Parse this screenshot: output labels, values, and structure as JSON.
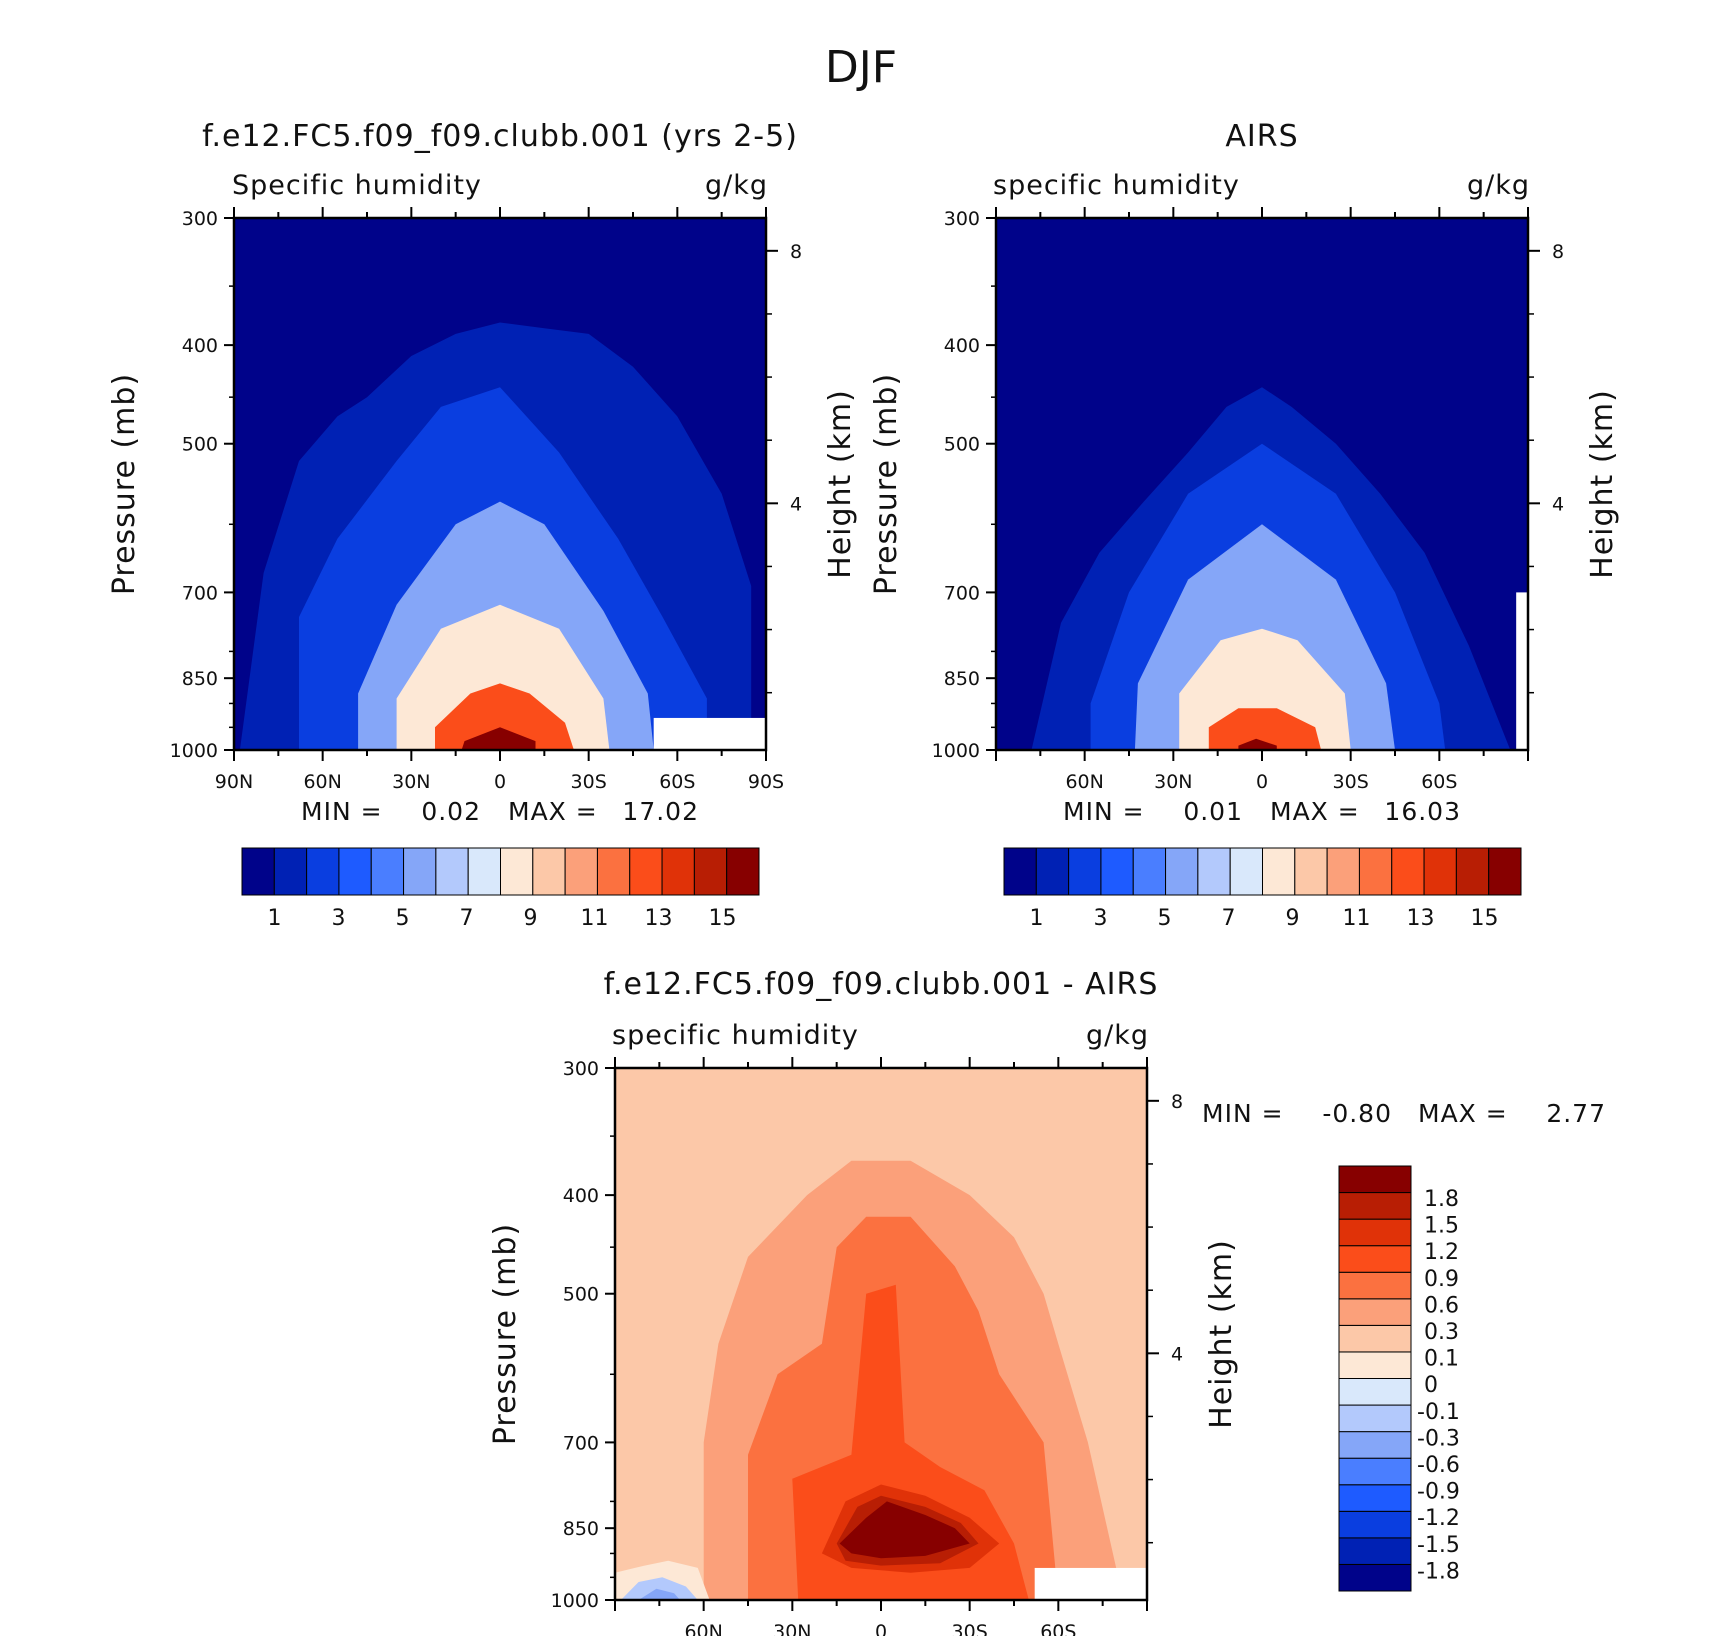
{
  "figure": {
    "title": "DJF"
  },
  "common": {
    "y_ticks": [
      "300",
      "400",
      "500",
      "700",
      "850",
      "1000"
    ],
    "height_ticks": [
      "8",
      "4"
    ],
    "y_label": "Pressure (mb)",
    "height_label": "Height (km)",
    "min_label": "MIN =",
    "max_label": "MAX ="
  },
  "panels": [
    {
      "id": "model",
      "title": "f.e12.FC5.f09_f09.clubb.001 (yrs 2-5)",
      "left_label": "Specific humidity",
      "right_label": "g/kg",
      "x_ticks": [
        "90N",
        "60N",
        "30N",
        "0",
        "30S",
        "60S",
        "90S"
      ],
      "min": "0.02",
      "max": "17.02",
      "colorbar_labels": [
        "1",
        "3",
        "5",
        "7",
        "9",
        "11",
        "13",
        "15"
      ]
    },
    {
      "id": "obs",
      "title": "AIRS",
      "left_label": "specific humidity",
      "right_label": "g/kg",
      "x_ticks": [
        "60N",
        "30N",
        "0",
        "30S",
        "60S"
      ],
      "min": "0.01",
      "max": "16.03",
      "colorbar_labels": [
        "1",
        "3",
        "5",
        "7",
        "9",
        "11",
        "13",
        "15"
      ]
    },
    {
      "id": "diff",
      "title": "f.e12.FC5.f09_f09.clubb.001 - AIRS",
      "left_label": "specific humidity",
      "right_label": "g/kg",
      "x_ticks": [
        "60N",
        "30N",
        "0",
        "30S",
        "60S"
      ],
      "min": "-0.80",
      "max": "2.77",
      "colorbar_labels": [
        "1.8",
        "1.5",
        "1.2",
        "0.9",
        "0.6",
        "0.3",
        "0.1",
        "0",
        "-0.1",
        "-0.3",
        "-0.6",
        "-0.9",
        "-1.2",
        "-1.5",
        "-1.8"
      ]
    }
  ],
  "chart_data": [
    {
      "type": "heatmap",
      "title": "f.e12.FC5.f09_f09.clubb.001 (yrs 2-5)",
      "variable": "Specific humidity",
      "units": "g/kg",
      "xlabel": "",
      "ylabel": "Pressure (mb)",
      "y2label": "Height (km)",
      "xlim": [
        90,
        -90
      ],
      "x_ticks": [
        90,
        60,
        30,
        0,
        -30,
        -60,
        -90
      ],
      "ylim": [
        1000,
        300
      ],
      "y_scale": "log",
      "y_ticks": [
        300,
        400,
        500,
        700,
        850,
        1000
      ],
      "y2_ticks": [
        8,
        4
      ],
      "min": 0.02,
      "max": 17.02,
      "contour_levels": [
        1,
        2,
        3,
        4,
        5,
        6,
        7,
        8,
        9,
        10,
        11,
        12,
        13,
        14,
        15
      ],
      "colors": [
        "#00038a",
        "#0021b4",
        "#0a3ee0",
        "#1e5bff",
        "#4a7eff",
        "#85a6f8",
        "#b3c9fc",
        "#d9e8fb",
        "#fde8d6",
        "#fcc8a8",
        "#fba07a",
        "#fb7140",
        "#fb4d1a",
        "#e03208",
        "#b81e04",
        "#870000"
      ],
      "peak": {
        "lat": 0,
        "p": 1000
      },
      "missing_region": {
        "lat_range": [
          -52,
          -90
        ],
        "p_range": [
          930,
          1000
        ]
      },
      "contours": [
        {
          "level": 1,
          "tops": [
            [
              -85,
              690
            ],
            [
              -75,
              560
            ],
            [
              -60,
              470
            ],
            [
              -45,
              420
            ],
            [
              -30,
              390
            ],
            [
              -15,
              385
            ],
            [
              0,
              380
            ],
            [
              15,
              390
            ],
            [
              30,
              410
            ],
            [
              45,
              450
            ],
            [
              55,
              470
            ],
            [
              68,
              520
            ],
            [
              80,
              670
            ],
            [
              88,
              1000
            ]
          ]
        },
        {
          "level": 2,
          "bottom_lat": [
            -70,
            68
          ],
          "tops": [
            [
              -70,
              890
            ],
            [
              -55,
              740
            ],
            [
              -40,
              620
            ],
            [
              -20,
              510
            ],
            [
              0,
              440
            ],
            [
              20,
              460
            ],
            [
              35,
              520
            ],
            [
              55,
              620
            ],
            [
              68,
              740
            ]
          ]
        },
        {
          "level": 5,
          "bottom_lat": [
            -52,
            48
          ],
          "tops": [
            [
              -50,
              880
            ],
            [
              -35,
              730
            ],
            [
              -15,
              600
            ],
            [
              0,
              570
            ],
            [
              15,
              600
            ],
            [
              35,
              720
            ],
            [
              48,
              880
            ]
          ]
        },
        {
          "level": 8,
          "bottom_lat": [
            -37,
            35
          ],
          "tops": [
            [
              -35,
              890
            ],
            [
              -20,
              760
            ],
            [
              0,
              720
            ],
            [
              20,
              760
            ],
            [
              35,
              890
            ]
          ]
        },
        {
          "level": 12,
          "bottom_lat": [
            -25,
            22
          ],
          "tops": [
            [
              -22,
              940
            ],
            [
              -10,
              880
            ],
            [
              0,
              860
            ],
            [
              10,
              880
            ],
            [
              22,
              950
            ]
          ]
        },
        {
          "level": 15,
          "bottom_lat": [
            -12,
            13
          ],
          "tops": [
            [
              -12,
              980
            ],
            [
              0,
              950
            ],
            [
              12,
              980
            ]
          ]
        }
      ]
    },
    {
      "type": "heatmap",
      "title": "AIRS",
      "variable": "specific humidity",
      "units": "g/kg",
      "xlabel": "",
      "ylabel": "Pressure (mb)",
      "y2label": "Height (km)",
      "xlim": [
        90,
        -90
      ],
      "x_ticks": [
        60,
        30,
        0,
        -30,
        -60
      ],
      "ylim": [
        1000,
        300
      ],
      "y_scale": "log",
      "y_ticks": [
        300,
        400,
        500,
        700,
        850,
        1000
      ],
      "y2_ticks": [
        8,
        4
      ],
      "min": 0.01,
      "max": 16.03,
      "contour_levels": [
        1,
        2,
        3,
        4,
        5,
        6,
        7,
        8,
        9,
        10,
        11,
        12,
        13,
        14,
        15
      ],
      "colors": [
        "#00038a",
        "#0021b4",
        "#0a3ee0",
        "#1e5bff",
        "#4a7eff",
        "#85a6f8",
        "#b3c9fc",
        "#d9e8fb",
        "#fde8d6",
        "#fcc8a8",
        "#fba07a",
        "#fb7140",
        "#fb4d1a",
        "#e03208",
        "#b81e04",
        "#870000"
      ],
      "peak": {
        "lat": 0,
        "p": 1000
      },
      "missing_region": {
        "lat_range": [
          -86,
          -90
        ],
        "p_range": [
          700,
          1000
        ]
      },
      "contours": [
        {
          "level": 1,
          "tops": [
            [
              -84,
              1000
            ],
            [
              -70,
              790
            ],
            [
              -55,
              640
            ],
            [
              -40,
              560
            ],
            [
              -25,
              500
            ],
            [
              -10,
              460
            ],
            [
              0,
              440
            ],
            [
              12,
              460
            ],
            [
              25,
              510
            ],
            [
              40,
              570
            ],
            [
              55,
              640
            ],
            [
              68,
              750
            ],
            [
              78,
              1000
            ]
          ]
        },
        {
          "level": 2,
          "bottom_lat": [
            -62,
            58
          ],
          "tops": [
            [
              -60,
              900
            ],
            [
              -45,
              700
            ],
            [
              -25,
              560
            ],
            [
              0,
              500
            ],
            [
              25,
              560
            ],
            [
              45,
              700
            ],
            [
              58,
              900
            ]
          ]
        },
        {
          "level": 5,
          "bottom_lat": [
            -45,
            43
          ],
          "tops": [
            [
              -42,
              860
            ],
            [
              -25,
              680
            ],
            [
              0,
              600
            ],
            [
              25,
              680
            ],
            [
              42,
              860
            ]
          ]
        },
        {
          "level": 8,
          "bottom_lat": [
            -30,
            28
          ],
          "tops": [
            [
              -28,
              880
            ],
            [
              -12,
              780
            ],
            [
              0,
              760
            ],
            [
              14,
              780
            ],
            [
              28,
              880
            ]
          ]
        },
        {
          "level": 12,
          "bottom_lat": [
            -20,
            18
          ],
          "tops": [
            [
              -18,
              950
            ],
            [
              -5,
              910
            ],
            [
              8,
              910
            ],
            [
              18,
              950
            ]
          ]
        },
        {
          "level": 15,
          "bottom_lat": [
            -5,
            8
          ],
          "tops": [
            [
              -5,
              990
            ],
            [
              2,
              975
            ],
            [
              8,
              990
            ]
          ]
        }
      ]
    },
    {
      "type": "heatmap",
      "title": "f.e12.FC5.f09_f09.clubb.001 - AIRS",
      "variable": "specific humidity",
      "units": "g/kg",
      "xlabel": "",
      "ylabel": "Pressure (mb)",
      "y2label": "Height (km)",
      "xlim": [
        90,
        -90
      ],
      "x_ticks": [
        60,
        30,
        0,
        -30,
        -60
      ],
      "ylim": [
        1000,
        300
      ],
      "y_scale": "log",
      "y_ticks": [
        300,
        400,
        500,
        700,
        850,
        1000
      ],
      "y2_ticks": [
        8,
        4
      ],
      "min": -0.8,
      "max": 2.77,
      "contour_levels": [
        -1.8,
        -1.5,
        -1.2,
        -0.9,
        -0.6,
        -0.3,
        -0.1,
        0,
        0.1,
        0.3,
        0.6,
        0.9,
        1.2,
        1.5,
        1.8
      ],
      "colors": [
        "#00038a",
        "#0021b4",
        "#0a3ee0",
        "#1e5bff",
        "#4a7eff",
        "#85a6f8",
        "#b3c9fc",
        "#d9e8fb",
        "#fde8d6",
        "#fcc8a8",
        "#fba07a",
        "#fb7140",
        "#fb4d1a",
        "#e03208",
        "#b81e04",
        "#870000"
      ],
      "background_level": 0.1,
      "peak": {
        "lat": 0,
        "p": 850
      },
      "missing_region": {
        "lat_range": [
          -52,
          -90
        ],
        "p_range": [
          930,
          1000
        ]
      },
      "regions": [
        {
          "level": 0.3,
          "polygon": [
            [
              60,
              1000
            ],
            [
              60,
              700
            ],
            [
              55,
              560
            ],
            [
              45,
              460
            ],
            [
              25,
              400
            ],
            [
              10,
              370
            ],
            [
              -10,
              370
            ],
            [
              -30,
              400
            ],
            [
              -45,
              440
            ],
            [
              -55,
              500
            ],
            [
              -60,
              560
            ],
            [
              -70,
              700
            ],
            [
              -82,
              1000
            ]
          ]
        },
        {
          "level": 0.6,
          "polygon": [
            [
              45,
              1000
            ],
            [
              45,
              720
            ],
            [
              35,
              600
            ],
            [
              20,
              560
            ],
            [
              15,
              450
            ],
            [
              5,
              420
            ],
            [
              -10,
              420
            ],
            [
              -25,
              470
            ],
            [
              -33,
              520
            ],
            [
              -40,
              600
            ],
            [
              -55,
              700
            ],
            [
              -60,
              1000
            ]
          ]
        },
        {
          "level": 0.9,
          "polygon": [
            [
              28,
              1000
            ],
            [
              30,
              760
            ],
            [
              10,
              720
            ],
            [
              5,
              500
            ],
            [
              -5,
              490
            ],
            [
              -8,
              700
            ],
            [
              -20,
              740
            ],
            [
              -35,
              780
            ],
            [
              -45,
              880
            ],
            [
              -50,
              1000
            ]
          ]
        },
        {
          "level": 1.2,
          "polygon": [
            [
              20,
              900
            ],
            [
              12,
              800
            ],
            [
              0,
              770
            ],
            [
              -15,
              790
            ],
            [
              -30,
              830
            ],
            [
              -40,
              880
            ],
            [
              -30,
              930
            ],
            [
              -10,
              940
            ],
            [
              10,
              930
            ]
          ]
        },
        {
          "level": 1.5,
          "polygon": [
            [
              15,
              880
            ],
            [
              8,
              810
            ],
            [
              0,
              790
            ],
            [
              -15,
              810
            ],
            [
              -27,
              840
            ],
            [
              -33,
              880
            ],
            [
              -20,
              920
            ],
            [
              0,
              925
            ],
            [
              12,
              915
            ]
          ]
        },
        {
          "level": 1.8,
          "polygon": [
            [
              14,
              880
            ],
            [
              5,
              830
            ],
            [
              -2,
              800
            ],
            [
              -15,
              825
            ],
            [
              -25,
              850
            ],
            [
              -30,
              880
            ],
            [
              -15,
              905
            ],
            [
              0,
              910
            ],
            [
              10,
              900
            ]
          ]
        },
        {
          "level": 0,
          "polygon": [
            [
              90,
              1000
            ],
            [
              90,
              940
            ],
            [
              80,
              925
            ],
            [
              72,
              915
            ],
            [
              62,
              930
            ],
            [
              58,
              1000
            ]
          ]
        },
        {
          "level": -0.3,
          "polygon": [
            [
              88,
              1000
            ],
            [
              82,
              960
            ],
            [
              74,
              950
            ],
            [
              66,
              970
            ],
            [
              62,
              1000
            ]
          ]
        },
        {
          "level": -0.6,
          "polygon": [
            [
              82,
              1000
            ],
            [
              76,
              975
            ],
            [
              70,
              985
            ],
            [
              68,
              1000
            ]
          ]
        }
      ]
    }
  ]
}
